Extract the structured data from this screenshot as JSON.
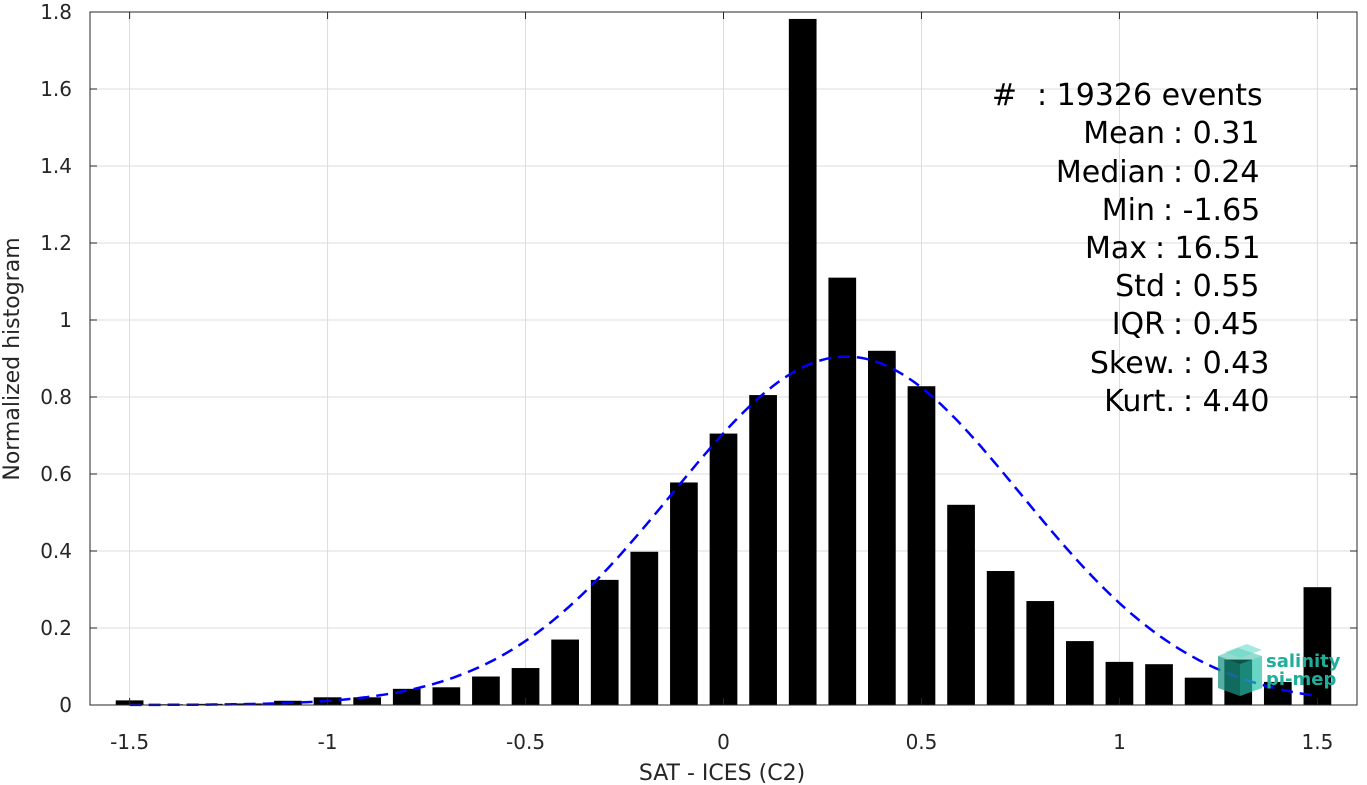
{
  "chart_data": {
    "type": "bar",
    "xlabel": "SAT - ICES (C2)",
    "ylabel": "Normalized histogram",
    "xlim": [
      -1.6,
      1.6
    ],
    "ylim": [
      0,
      1.8
    ],
    "xticks": [
      -1.5,
      -1,
      -0.5,
      0,
      0.5,
      1,
      1.5
    ],
    "xtick_labels": [
      "-1.5",
      "-1",
      "-0.5",
      "0",
      "0.5",
      "1",
      "1.5"
    ],
    "yticks": [
      0,
      0.2,
      0.4,
      0.6,
      0.8,
      1,
      1.2,
      1.4,
      1.6,
      1.8
    ],
    "ytick_labels": [
      "0",
      "0.2",
      "0.4",
      "0.6",
      "0.8",
      "1",
      "1.2",
      "1.4",
      "1.6",
      "1.8"
    ],
    "grid": true,
    "bar_color": "#000000",
    "bar_width": 0.07,
    "bars": {
      "x": [
        -1.5,
        -1.4,
        -1.3,
        -1.2,
        -1.1,
        -1.0,
        -0.9,
        -0.8,
        -0.7,
        -0.6,
        -0.5,
        -0.4,
        -0.3,
        -0.2,
        -0.1,
        0.0,
        0.1,
        0.2,
        0.3,
        0.4,
        0.5,
        0.6,
        0.7,
        0.8,
        0.9,
        1.0,
        1.1,
        1.2,
        1.3,
        1.4,
        1.5
      ],
      "values": [
        0.012,
        0.002,
        0.003,
        0.004,
        0.011,
        0.02,
        0.02,
        0.042,
        0.046,
        0.074,
        0.096,
        0.17,
        0.325,
        0.398,
        0.578,
        0.705,
        0.805,
        1.782,
        1.11,
        0.92,
        0.828,
        0.52,
        0.348,
        0.27,
        0.166,
        0.112,
        0.106,
        0.071,
        0.118,
        0.06,
        0.306
      ]
    },
    "fit": {
      "style": "dashed",
      "color": "#0000ff",
      "mean": 0.31,
      "std": 0.44,
      "peak": 0.905
    },
    "stats": [
      {
        "label": "#",
        "value": ": 19326 events"
      },
      {
        "label": "Mean",
        "value": ": 0.31"
      },
      {
        "label": "Median",
        "value": ": 0.24"
      },
      {
        "label": "Min",
        "value": ": -1.65"
      },
      {
        "label": "Max",
        "value": ": 16.51"
      },
      {
        "label": "Std",
        "value": ": 0.55"
      },
      {
        "label": "IQR",
        "value": ": 0.45"
      },
      {
        "label": "Skew.",
        "value": ": 0.43"
      },
      {
        "label": "Kurt.",
        "value": ": 4.40"
      }
    ]
  },
  "logo": {
    "line1": "salinity",
    "line2": "pi-mep",
    "color": "#1fae9a"
  }
}
